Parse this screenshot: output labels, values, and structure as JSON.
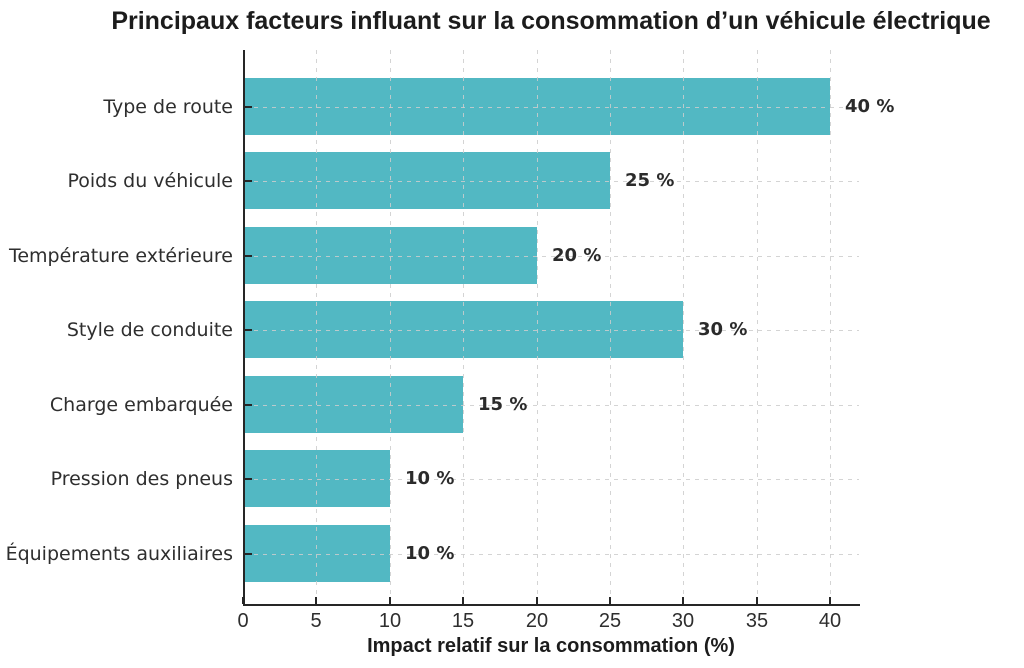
{
  "chart_data": {
    "type": "bar",
    "orientation": "horizontal",
    "title": "Principaux facteurs influant sur la consommation d’un véhicule électrique",
    "xlabel": "Impact relatif sur la consommation (%)",
    "ylabel": "",
    "categories": [
      "Type de route",
      "Poids du véhicule",
      "Température extérieure",
      "Style de conduite",
      "Charge embarquée",
      "Pression des pneus",
      "Équipements auxiliaires"
    ],
    "values": [
      40,
      25,
      20,
      30,
      15,
      10,
      10
    ],
    "value_labels": [
      "40 %",
      "25 %",
      "20 %",
      "30 %",
      "15 %",
      "10 %",
      "10 %"
    ],
    "x_ticks": [
      0,
      5,
      10,
      15,
      20,
      25,
      30,
      35,
      40
    ],
    "xlim": [
      0,
      42
    ],
    "grid": "dashed",
    "legend": "none",
    "colors": {
      "bar": "#52b8c3",
      "axis": "#262626",
      "text": "#2e2e2e",
      "grid": "#cdcdcd",
      "background": "#ffffff"
    }
  }
}
